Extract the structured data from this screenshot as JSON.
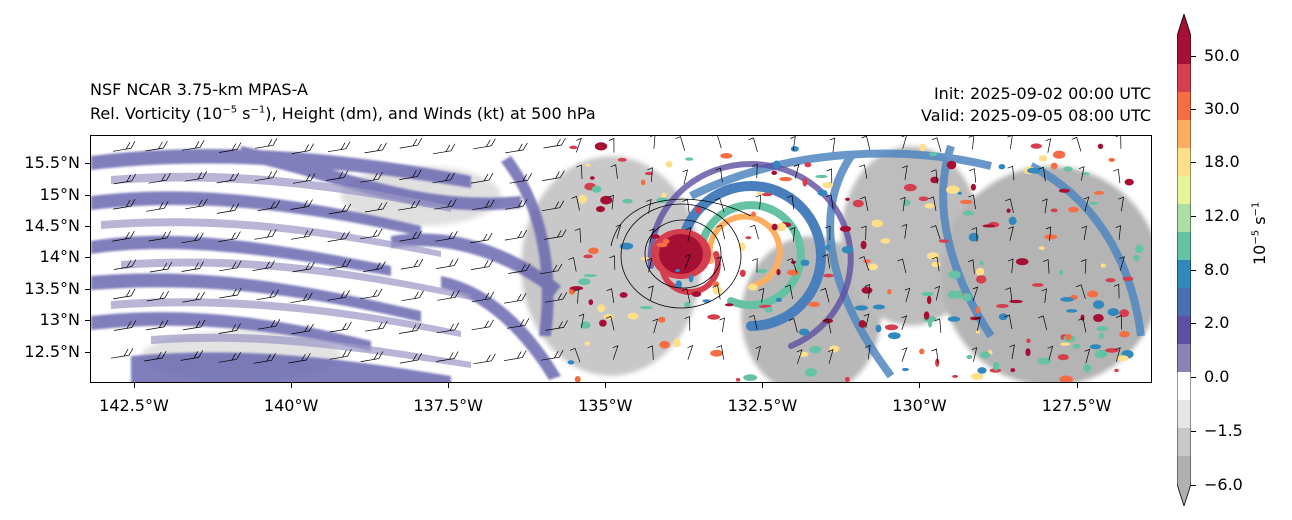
{
  "header": {
    "model": "NSF NCAR 3.75-km MPAS-A",
    "field_prefix": "Rel. Vorticity (10",
    "field_exp1": "−5",
    "field_mid": " s",
    "field_exp2": "−1",
    "field_suffix": "), Height (dm), and Winds (kt) at 500 hPa",
    "init": "Init: 2025-09-02 00:00 UTC",
    "valid": "Valid: 2025-09-05 08:00 UTC"
  },
  "map": {
    "lon_range": [
      -143.2,
      -126.3
    ],
    "lat_range": [
      12.0,
      15.95
    ],
    "lat_ticks": [
      "15.5°N",
      "15°N",
      "14.5°N",
      "14°N",
      "13.5°N",
      "13°N",
      "12.5°N"
    ],
    "lat_values": [
      15.5,
      15.0,
      14.5,
      14.0,
      13.5,
      13.0,
      12.5
    ],
    "lon_ticks": [
      "142.5°W",
      "140°W",
      "137.5°W",
      "135°W",
      "132.5°W",
      "130°W",
      "127.5°W"
    ],
    "lon_values": [
      -142.5,
      -140.0,
      -137.5,
      -135.0,
      -132.5,
      -130.0,
      -127.5
    ],
    "storm_center": {
      "lon": -133.6,
      "lat": 14.05
    },
    "height_contours_note": ""
  },
  "colorbar": {
    "unit_base": "10",
    "unit_exp": "−5",
    "unit_mid": " s",
    "unit_exp2": "−1",
    "labels": [
      "50.0",
      "30.0",
      "18.0",
      "12.0",
      "8.0",
      "2.0",
      "0.0",
      "−1.5",
      "−6.0"
    ],
    "colors": [
      "#a50f33",
      "#d53e4f",
      "#f46d43",
      "#fdae61",
      "#fee08b",
      "#e6f598",
      "#abdda4",
      "#66c2a5",
      "#3288bd",
      "#4b6fb5",
      "#5e4fa2",
      "#8a84b6",
      "#ffffff",
      "#e6e6e6",
      "#c8c8c8",
      "#b0b0b0"
    ]
  }
}
